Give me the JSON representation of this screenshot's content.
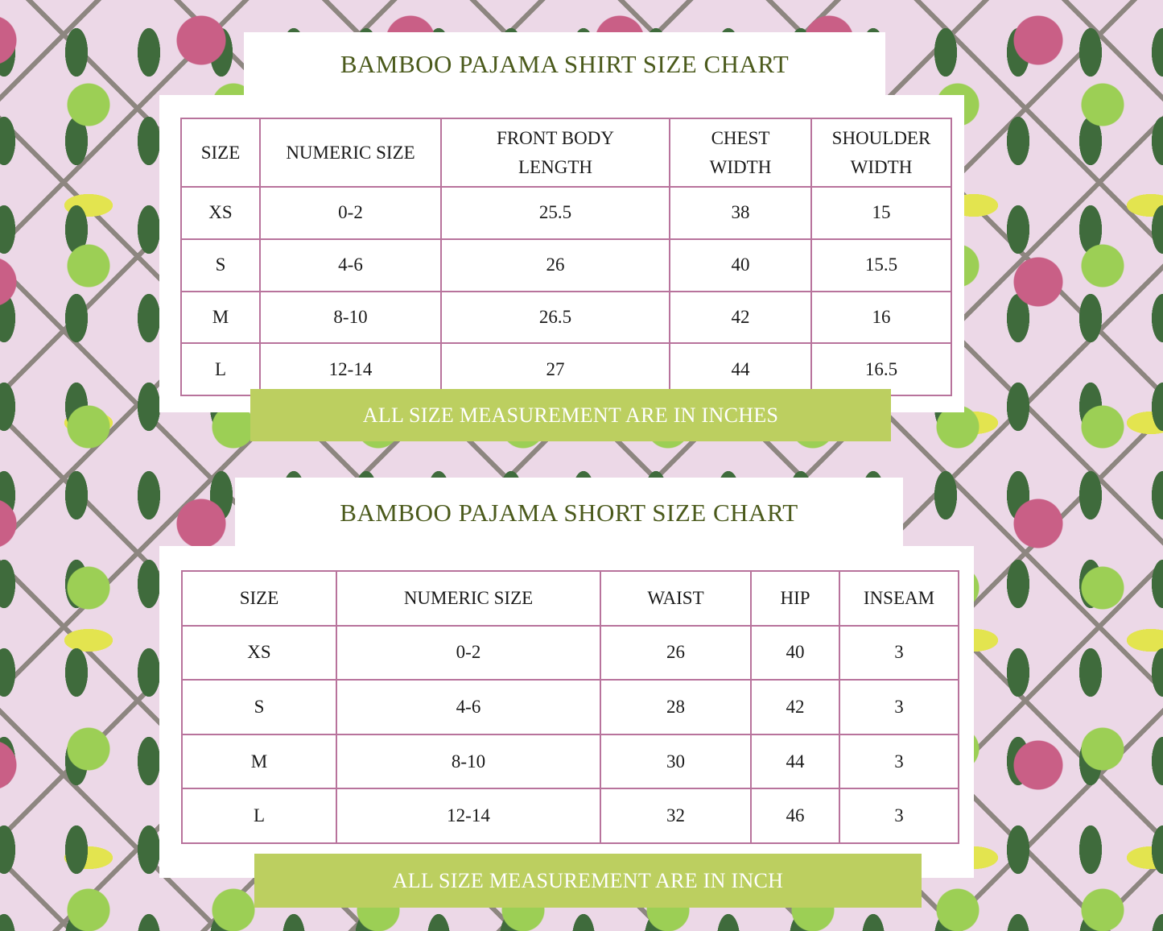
{
  "shirt": {
    "title": "BAMBOO PAJAMA SHIRT SIZE CHART",
    "headers": [
      "SIZE",
      "NUMERIC SIZE",
      "FRONT BODY LENGTH",
      "CHEST WIDTH",
      "SHOULDER WIDTH"
    ],
    "rows": [
      [
        "XS",
        "0-2",
        "25.5",
        "38",
        "15"
      ],
      [
        "S",
        "4-6",
        "26",
        "40",
        "15.5"
      ],
      [
        "M",
        "8-10",
        "26.5",
        "42",
        "16"
      ],
      [
        "L",
        "12-14",
        "27",
        "44",
        "16.5"
      ]
    ],
    "note": "ALL SIZE MEASUREMENT ARE IN INCHES"
  },
  "short": {
    "title": "BAMBOO PAJAMA SHORT SIZE CHART",
    "headers": [
      "SIZE",
      "NUMERIC SIZE",
      "WAIST",
      "HIP",
      "INSEAM"
    ],
    "rows": [
      [
        "XS",
        "0-2",
        "26",
        "40",
        "3"
      ],
      [
        "S",
        "4-6",
        "28",
        "42",
        "3"
      ],
      [
        "M",
        "8-10",
        "30",
        "44",
        "3"
      ],
      [
        "L",
        "12-14",
        "32",
        "46",
        "3"
      ]
    ],
    "note": "ALL SIZE MEASUREMENT ARE IN INCH"
  },
  "colors": {
    "title": "#4b5a1c",
    "banner": "#bccf60",
    "border": "#b8739c",
    "background": "#ecd8e7"
  }
}
